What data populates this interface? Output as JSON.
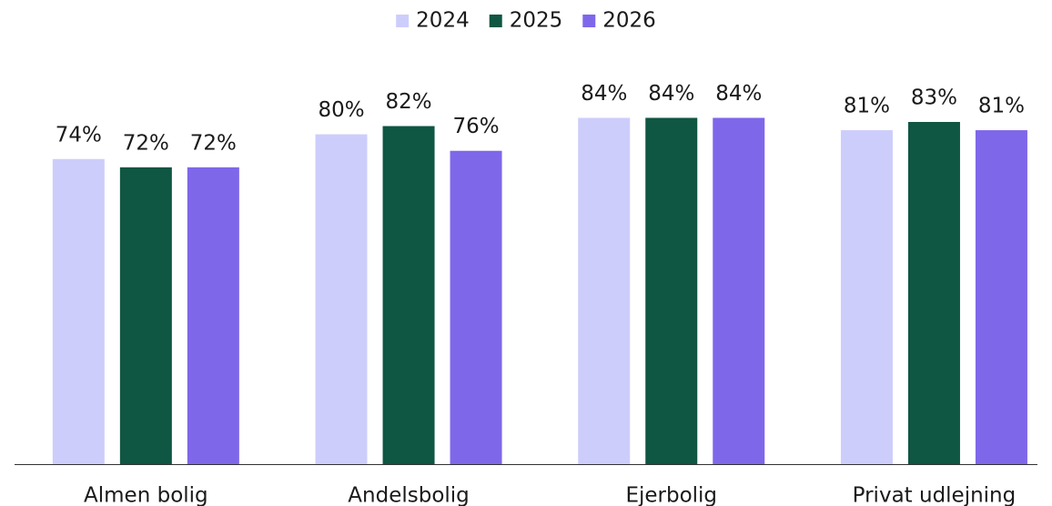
{
  "chart_data": {
    "type": "bar",
    "categories": [
      "Almen bolig",
      "Andelsbolig",
      "Ejerbolig",
      "Privat udlejning"
    ],
    "series": [
      {
        "name": "2024",
        "color": "#cdcdfc",
        "values": [
          74,
          80,
          84,
          81
        ],
        "value_labels": [
          "74%",
          "80%",
          "84%",
          "81%"
        ]
      },
      {
        "name": "2025",
        "color": "#0f5643",
        "values": [
          72,
          82,
          84,
          83
        ],
        "value_labels": [
          "72%",
          "82%",
          "84%",
          "83%"
        ]
      },
      {
        "name": "2026",
        "color": "#7f67ea",
        "values": [
          72,
          76,
          84,
          81
        ],
        "value_labels": [
          "72%",
          "76%",
          "84%",
          "81%"
        ]
      }
    ],
    "ylim": [
      0,
      100
    ],
    "legend": "top"
  }
}
